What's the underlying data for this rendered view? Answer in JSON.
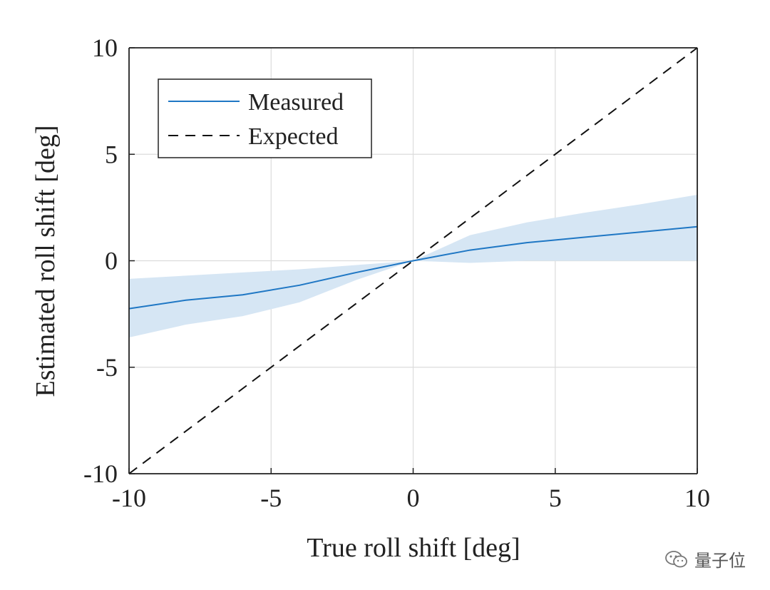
{
  "chart_data": {
    "type": "line",
    "xlabel": "True roll shift [deg]",
    "ylabel": "Estimated roll shift [deg]",
    "xlim": [
      -10,
      10
    ],
    "ylim": [
      -10,
      10
    ],
    "xticks": [
      "-10",
      "-5",
      "0",
      "5",
      "10"
    ],
    "yticks": [
      "-10",
      "-5",
      "0",
      "5",
      "10"
    ],
    "grid": true,
    "legend_position": "top-left",
    "series": [
      {
        "name": "Measured",
        "style": "solid",
        "color": "#1f77c4",
        "x": [
          -10,
          -8,
          -6,
          -4,
          -2,
          0,
          2,
          4,
          6,
          8,
          10
        ],
        "y": [
          -2.25,
          -1.85,
          -1.6,
          -1.15,
          -0.55,
          0.0,
          0.5,
          0.85,
          1.1,
          1.35,
          1.6
        ],
        "band_upper": [
          -0.85,
          -0.7,
          -0.55,
          -0.4,
          -0.2,
          0.0,
          1.2,
          1.8,
          2.25,
          2.65,
          3.1
        ],
        "band_lower": [
          -3.6,
          -3.0,
          -2.6,
          -1.95,
          -0.9,
          0.0,
          -0.1,
          0.0,
          0.0,
          0.0,
          0.0
        ],
        "band_color": "#d6e6f4"
      },
      {
        "name": "Expected",
        "style": "dashed",
        "color": "#111111",
        "x": [
          -10,
          10
        ],
        "y": [
          -10,
          10
        ]
      }
    ]
  },
  "watermark": {
    "text": "量子位",
    "icon": "wechat-icon"
  }
}
